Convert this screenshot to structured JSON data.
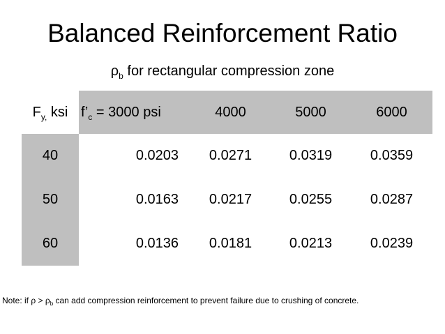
{
  "title": "Balanced Reinforcement Ratio",
  "subtitle": {
    "symbol": "ρ",
    "symbol_subscript": "b",
    "text": " for rectangular compression zone"
  },
  "table": {
    "corner": {
      "prefix": "F",
      "subscript": "y,",
      "suffix": " ksi"
    },
    "fc_header": {
      "prefix": "f’",
      "subscript": "c",
      "suffix": " = 3000 psi"
    },
    "other_headers": [
      "4000",
      "5000",
      "6000"
    ],
    "rows": [
      {
        "fy": "40",
        "values": [
          "0.0203",
          "0.0271",
          "0.0319",
          "0.0359"
        ]
      },
      {
        "fy": "50",
        "values": [
          "0.0163",
          "0.0217",
          "0.0255",
          "0.0287"
        ]
      },
      {
        "fy": "60",
        "values": [
          "0.0136",
          "0.0181",
          "0.0213",
          "0.0239"
        ]
      }
    ],
    "colors": {
      "header_fill": "#bfbfbf",
      "body_fill": "#ffffff"
    }
  },
  "note": {
    "before": "Note: if ρ > ρ",
    "subscript": "b",
    "after": " can add compression reinforcement to prevent failure due to crushing of concrete."
  }
}
